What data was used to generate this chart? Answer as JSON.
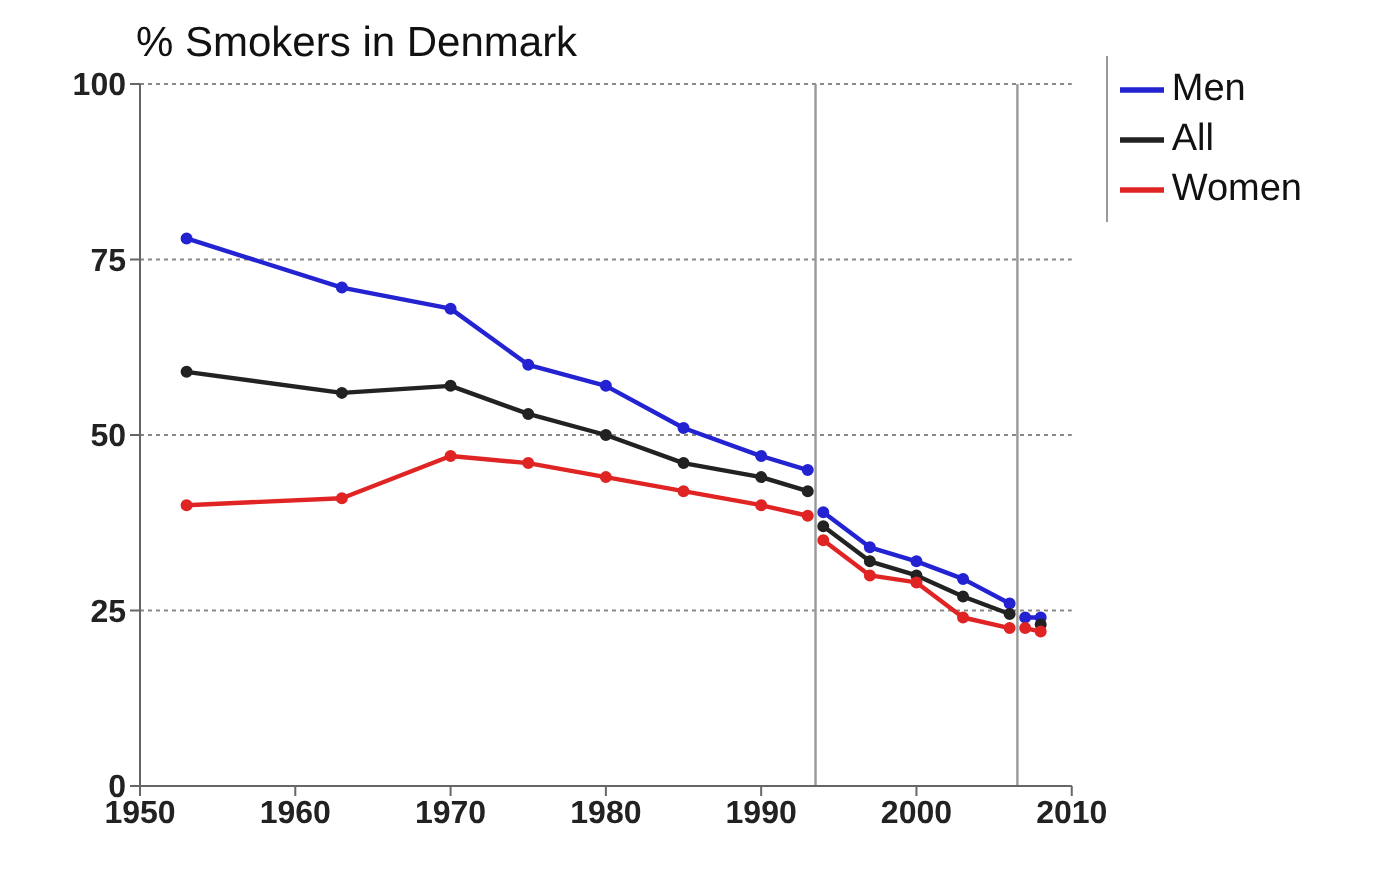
{
  "chart_data": {
    "type": "line",
    "title": "% Smokers in Denmark",
    "x": [
      1953,
      1963,
      1970,
      1975,
      1980,
      1985,
      1990,
      1993,
      1993.5,
      1994,
      1997,
      2000,
      2003,
      2006,
      2006.5,
      2007,
      2008
    ],
    "series": [
      {
        "name": "Men",
        "color": "#2323d2",
        "values": [
          78,
          71,
          68,
          60,
          57,
          51,
          47,
          45,
          null,
          39,
          34,
          32,
          29.5,
          26,
          null,
          24,
          24
        ]
      },
      {
        "name": "All",
        "color": "#222222",
        "values": [
          59,
          56,
          57,
          53,
          50,
          46,
          44,
          42,
          null,
          37,
          32,
          30,
          27,
          24.5,
          null,
          null,
          23
        ]
      },
      {
        "name": "Women",
        "color": "#e02424",
        "values": [
          40,
          41,
          47,
          46,
          44,
          42,
          40,
          38.5,
          null,
          35,
          30,
          29,
          24,
          22.5,
          null,
          22.5,
          22
        ]
      }
    ],
    "xlim": [
      1950,
      2010
    ],
    "xticks": [
      1950,
      1960,
      1970,
      1980,
      1990,
      2000,
      2010
    ],
    "ylim": [
      0,
      100
    ],
    "yticks": [
      0,
      25,
      50,
      75,
      100
    ],
    "grid": "y",
    "legend": "top right",
    "marker": "circle",
    "line_style": "solid",
    "ref_lines": [
      {
        "axis": "x",
        "value": 1993.5,
        "color": "#999999"
      },
      {
        "axis": "x",
        "value": 2006.5,
        "color": "#999999"
      }
    ]
  }
}
